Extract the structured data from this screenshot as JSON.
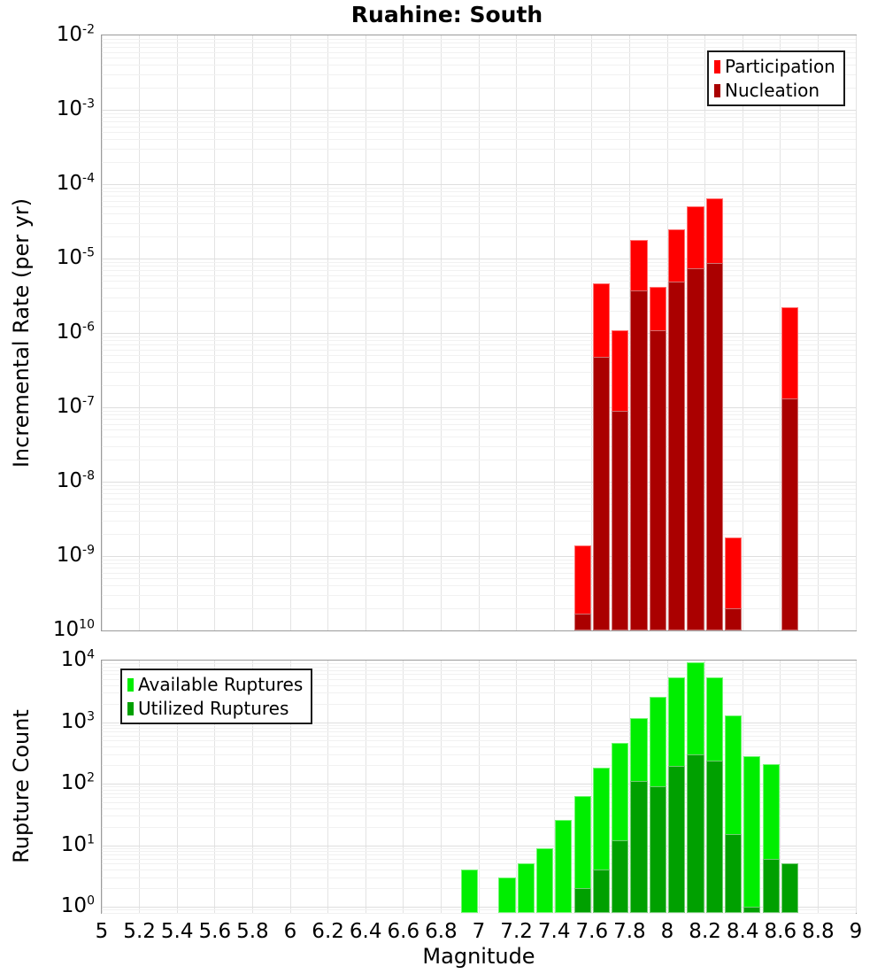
{
  "title": "Ruahine: South",
  "xlabel": "Magnitude",
  "x_ticks": [
    {
      "v": 5,
      "label": "5"
    },
    {
      "v": 5.2,
      "label": "5.2"
    },
    {
      "v": 5.4,
      "label": "5.4"
    },
    {
      "v": 5.6,
      "label": "5.6"
    },
    {
      "v": 5.8,
      "label": "5.8"
    },
    {
      "v": 6,
      "label": "6"
    },
    {
      "v": 6.2,
      "label": "6.2"
    },
    {
      "v": 6.4,
      "label": "6.4"
    },
    {
      "v": 6.6,
      "label": "6.6"
    },
    {
      "v": 6.8,
      "label": "6.8"
    },
    {
      "v": 7,
      "label": "7"
    },
    {
      "v": 7.2,
      "label": "7.2"
    },
    {
      "v": 7.4,
      "label": "7.4"
    },
    {
      "v": 7.6,
      "label": "7.6"
    },
    {
      "v": 7.8,
      "label": "7.8"
    },
    {
      "v": 8,
      "label": "8"
    },
    {
      "v": 8.2,
      "label": "8.2"
    },
    {
      "v": 8.4,
      "label": "8.4"
    },
    {
      "v": 8.6,
      "label": "8.6"
    },
    {
      "v": 8.8,
      "label": "8.8"
    },
    {
      "v": 9,
      "label": "9"
    }
  ],
  "chart_data": [
    {
      "type": "bar",
      "name": "incremental-rate",
      "title": "Ruahine: South",
      "ylabel": "Incremental Rate (per yr)",
      "yscale": "log",
      "grid": true,
      "xlim": [
        5,
        9
      ],
      "ylim": [
        1e-10,
        0.01
      ],
      "bin_width": 0.1,
      "y_ticks": [
        {
          "exp": "-2",
          "value": 0.01
        },
        {
          "exp": "-3",
          "value": 0.001
        },
        {
          "exp": "-4",
          "value": 0.0001
        },
        {
          "exp": "-5",
          "value": 1e-05
        },
        {
          "exp": "-6",
          "value": 1e-06
        },
        {
          "exp": "-7",
          "value": 1e-07
        },
        {
          "exp": "-8",
          "value": 1e-08
        },
        {
          "exp": "-9",
          "value": 1e-09
        },
        {
          "exp": "10",
          "value": 1e-10
        }
      ],
      "legend": {
        "position": "top-right",
        "entries": [
          {
            "label": "Participation",
            "color": "#ff0000"
          },
          {
            "label": "Nucleation",
            "color": "#aa0000"
          }
        ]
      },
      "series": [
        {
          "name": "Participation",
          "color": "#ff0000",
          "data": [
            {
              "m": 7.5,
              "v": 1.4e-09
            },
            {
              "m": 7.6,
              "v": 4.6e-06
            },
            {
              "m": 7.7,
              "v": 1.1e-06
            },
            {
              "m": 7.8,
              "v": 1.8e-05
            },
            {
              "m": 7.9,
              "v": 4.2e-06
            },
            {
              "m": 8.0,
              "v": 2.5e-05
            },
            {
              "m": 8.1,
              "v": 5.1e-05
            },
            {
              "m": 8.2,
              "v": 6.4e-05
            },
            {
              "m": 8.3,
              "v": 1.8e-09
            },
            {
              "m": 8.6,
              "v": 2.2e-06
            }
          ]
        },
        {
          "name": "Nucleation",
          "color": "#aa0000",
          "data": [
            {
              "m": 7.5,
              "v": 1.7e-10
            },
            {
              "m": 7.6,
              "v": 4.8e-07
            },
            {
              "m": 7.7,
              "v": 9e-08
            },
            {
              "m": 7.8,
              "v": 3.7e-06
            },
            {
              "m": 7.9,
              "v": 1.1e-06
            },
            {
              "m": 8.0,
              "v": 4.9e-06
            },
            {
              "m": 8.1,
              "v": 7.5e-06
            },
            {
              "m": 8.2,
              "v": 8.7e-06
            },
            {
              "m": 8.3,
              "v": 2e-10
            },
            {
              "m": 8.6,
              "v": 1.3e-07
            }
          ]
        }
      ]
    },
    {
      "type": "bar",
      "name": "rupture-count",
      "ylabel": "Rupture Count",
      "yscale": "log",
      "grid": true,
      "xlim": [
        5,
        9
      ],
      "ylim": [
        0.794,
        10000
      ],
      "bin_width": 0.1,
      "y_ticks": [
        {
          "exp": "4",
          "value": 10000
        },
        {
          "exp": "3",
          "value": 1000
        },
        {
          "exp": "2",
          "value": 100
        },
        {
          "exp": "1",
          "value": 10
        },
        {
          "exp": "0",
          "value": 1
        }
      ],
      "legend": {
        "position": "top-left",
        "entries": [
          {
            "label": "Available Ruptures",
            "color": "#00ee00"
          },
          {
            "label": "Utilized Ruptures",
            "color": "#00a000"
          }
        ]
      },
      "series": [
        {
          "name": "Available Ruptures",
          "color": "#00ee00",
          "data": [
            {
              "m": 6.9,
              "v": 4
            },
            {
              "m": 7.1,
              "v": 3
            },
            {
              "m": 7.2,
              "v": 5
            },
            {
              "m": 7.3,
              "v": 9
            },
            {
              "m": 7.4,
              "v": 26
            },
            {
              "m": 7.5,
              "v": 62
            },
            {
              "m": 7.6,
              "v": 180
            },
            {
              "m": 7.7,
              "v": 460
            },
            {
              "m": 7.8,
              "v": 1150
            },
            {
              "m": 7.9,
              "v": 2550
            },
            {
              "m": 8.0,
              "v": 5300
            },
            {
              "m": 8.1,
              "v": 9300
            },
            {
              "m": 8.2,
              "v": 5300
            },
            {
              "m": 8.3,
              "v": 1300
            },
            {
              "m": 8.4,
              "v": 280
            },
            {
              "m": 8.5,
              "v": 205
            },
            {
              "m": 8.6,
              "v": 5
            }
          ]
        },
        {
          "name": "Utilized Ruptures",
          "color": "#00a000",
          "data": [
            {
              "m": 7.5,
              "v": 2
            },
            {
              "m": 7.6,
              "v": 4
            },
            {
              "m": 7.7,
              "v": 12
            },
            {
              "m": 7.8,
              "v": 110
            },
            {
              "m": 7.9,
              "v": 90
            },
            {
              "m": 8.0,
              "v": 195
            },
            {
              "m": 8.1,
              "v": 300
            },
            {
              "m": 8.2,
              "v": 235
            },
            {
              "m": 8.3,
              "v": 15
            },
            {
              "m": 8.4,
              "v": 1
            },
            {
              "m": 8.5,
              "v": 6
            },
            {
              "m": 8.6,
              "v": 5
            }
          ]
        }
      ]
    }
  ]
}
